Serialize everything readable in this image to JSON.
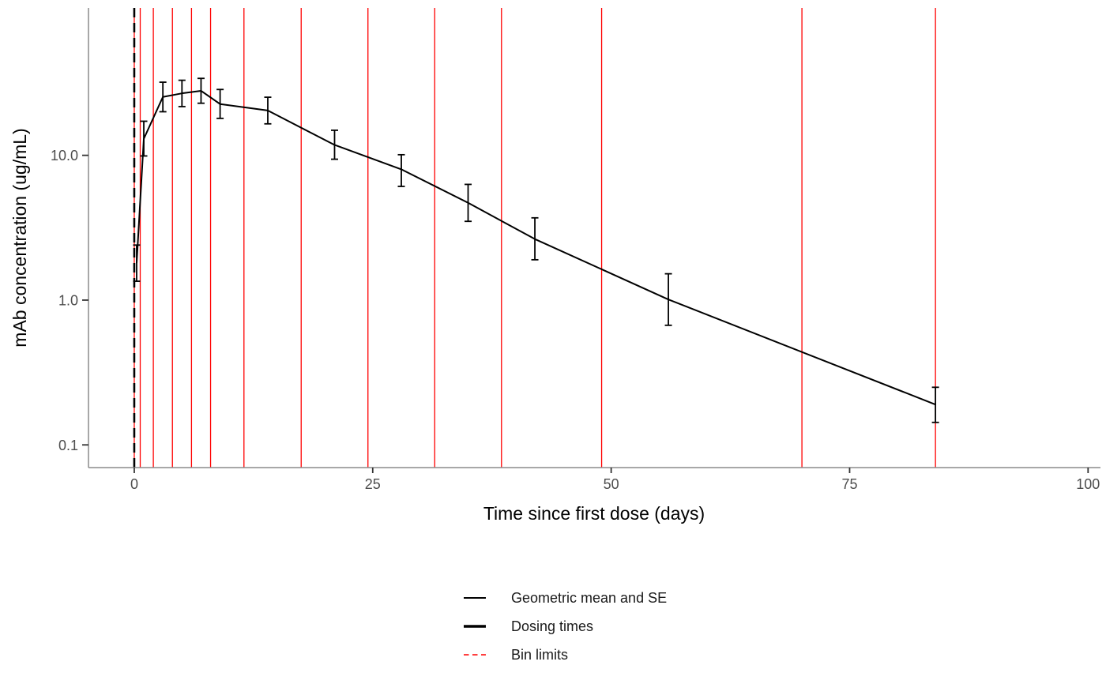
{
  "chart_data": {
    "type": "line",
    "title": "",
    "xlabel": "Time since first dose (days)",
    "ylabel": "mAb concentration (ug/mL)",
    "x_scale": "linear",
    "y_scale": "log10",
    "xlim": [
      -4.8,
      101.3
    ],
    "ylim": [
      0.0697,
      104.3
    ],
    "x_ticks": [
      0,
      25,
      50,
      75,
      100
    ],
    "x_tick_labels": [
      "0",
      "25",
      "50",
      "75",
      "100"
    ],
    "y_ticks": [
      10.0,
      1.0,
      0.1
    ],
    "y_tick_labels": [
      "10.0",
      "1.0",
      "0.1"
    ],
    "grid": "off",
    "legend_position": "bottom",
    "series": [
      {
        "name": "Geometric mean and SE",
        "x": [
          0.25,
          1.0,
          3.0,
          5.0,
          7.0,
          9.0,
          14.0,
          21.0,
          28.0,
          35.0,
          42.0,
          56.0,
          84.0
        ],
        "y": [
          1.8,
          13.0,
          25.3,
          26.8,
          27.9,
          22.6,
          20.4,
          11.8,
          8.0,
          4.7,
          2.64,
          1.01,
          0.19
        ],
        "y_lower": [
          1.35,
          9.9,
          20.0,
          21.7,
          22.9,
          18.0,
          16.5,
          9.4,
          6.1,
          3.5,
          1.9,
          0.67,
          0.143
        ],
        "y_upper": [
          2.4,
          17.2,
          32.0,
          33.0,
          34.0,
          28.5,
          25.2,
          14.9,
          10.1,
          6.3,
          3.7,
          1.52,
          0.25
        ]
      }
    ],
    "dosing_times": [
      0
    ],
    "bin_limits": [
      0,
      0.625,
      2,
      4,
      6,
      8,
      11.5,
      17.5,
      24.5,
      31.5,
      38.5,
      49,
      70,
      84
    ],
    "legend": [
      {
        "label": "Geometric mean and SE",
        "key": "solid-black-thin"
      },
      {
        "label": "Dosing times",
        "key": "solid-black-thick"
      },
      {
        "label": "Bin limits",
        "key": "dashed-red"
      }
    ],
    "colors": {
      "series_line": "#000000",
      "error_bar": "#000000",
      "dosing_line": "#000000",
      "bin_limit_line": "#FF0000",
      "axis_line": "#8C8C8C",
      "tick_mark": "#333333",
      "tick_label": "#4D4D4D",
      "axis_title": "#000000",
      "legend_text": "#1A1A1A",
      "background": "#FFFFFF"
    }
  }
}
